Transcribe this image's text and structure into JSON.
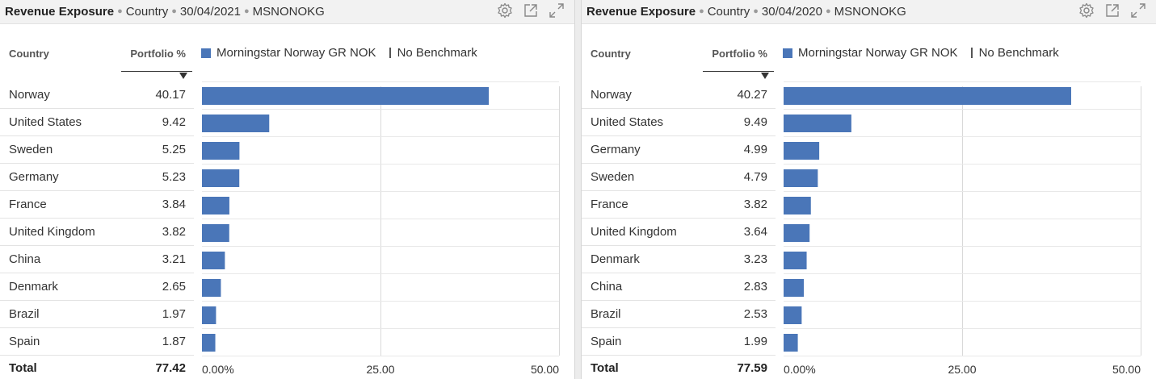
{
  "colors": {
    "bar": "#4a76b8",
    "grid": "#d9d9d9",
    "header_bg": "#f2f2f2"
  },
  "icons": [
    "gear-icon",
    "popout-icon",
    "expand-icon"
  ],
  "panels": [
    {
      "header": {
        "title": "Revenue Exposure",
        "category": "Country",
        "date": "30/04/2021",
        "code": "MSNONOKG"
      },
      "columns": {
        "country": "Country",
        "portfolio": "Portfolio %"
      },
      "legend": {
        "series": "Morningstar Norway GR NOK",
        "benchmark": "No Benchmark"
      },
      "rows": [
        {
          "name": "Norway",
          "value": "40.17"
        },
        {
          "name": "United States",
          "value": "9.42"
        },
        {
          "name": "Sweden",
          "value": "5.25"
        },
        {
          "name": "Germany",
          "value": "5.23"
        },
        {
          "name": "France",
          "value": "3.84"
        },
        {
          "name": "United Kingdom",
          "value": "3.82"
        },
        {
          "name": "China",
          "value": "3.21"
        },
        {
          "name": "Denmark",
          "value": "2.65"
        },
        {
          "name": "Brazil",
          "value": "1.97"
        },
        {
          "name": "Spain",
          "value": "1.87"
        }
      ],
      "total": {
        "label": "Total",
        "value": "77.42"
      }
    },
    {
      "header": {
        "title": "Revenue Exposure",
        "category": "Country",
        "date": "30/04/2020",
        "code": "MSNONOKG"
      },
      "columns": {
        "country": "Country",
        "portfolio": "Portfolio %"
      },
      "legend": {
        "series": "Morningstar Norway GR NOK",
        "benchmark": "No Benchmark"
      },
      "rows": [
        {
          "name": "Norway",
          "value": "40.27"
        },
        {
          "name": "United States",
          "value": "9.49"
        },
        {
          "name": "Germany",
          "value": "4.99"
        },
        {
          "name": "Sweden",
          "value": "4.79"
        },
        {
          "name": "France",
          "value": "3.82"
        },
        {
          "name": "United Kingdom",
          "value": "3.64"
        },
        {
          "name": "Denmark",
          "value": "3.23"
        },
        {
          "name": "China",
          "value": "2.83"
        },
        {
          "name": "Brazil",
          "value": "2.53"
        },
        {
          "name": "Spain",
          "value": "1.99"
        }
      ],
      "total": {
        "label": "Total",
        "value": "77.59"
      }
    }
  ],
  "chart_data": [
    {
      "type": "bar",
      "orientation": "horizontal",
      "categories": [
        "Norway",
        "United States",
        "Sweden",
        "Germany",
        "France",
        "United Kingdom",
        "China",
        "Denmark",
        "Brazil",
        "Spain"
      ],
      "series": [
        {
          "name": "Morningstar Norway GR NOK",
          "values": [
            40.17,
            9.42,
            5.25,
            5.23,
            3.84,
            3.82,
            3.21,
            2.65,
            1.97,
            1.87
          ]
        }
      ],
      "xlim": [
        0,
        50
      ],
      "ticks": [
        "0.00%",
        "25.00",
        "50.00"
      ],
      "tick_values": [
        0,
        25,
        50
      ],
      "grid": true,
      "legend_position": "top"
    },
    {
      "type": "bar",
      "orientation": "horizontal",
      "categories": [
        "Norway",
        "United States",
        "Germany",
        "Sweden",
        "France",
        "United Kingdom",
        "Denmark",
        "China",
        "Brazil",
        "Spain"
      ],
      "series": [
        {
          "name": "Morningstar Norway GR NOK",
          "values": [
            40.27,
            9.49,
            4.99,
            4.79,
            3.82,
            3.64,
            3.23,
            2.83,
            2.53,
            1.99
          ]
        }
      ],
      "xlim": [
        0,
        50
      ],
      "ticks": [
        "0.00%",
        "25.00",
        "50.00"
      ],
      "tick_values": [
        0,
        25,
        50
      ],
      "grid": true,
      "legend_position": "top"
    }
  ]
}
